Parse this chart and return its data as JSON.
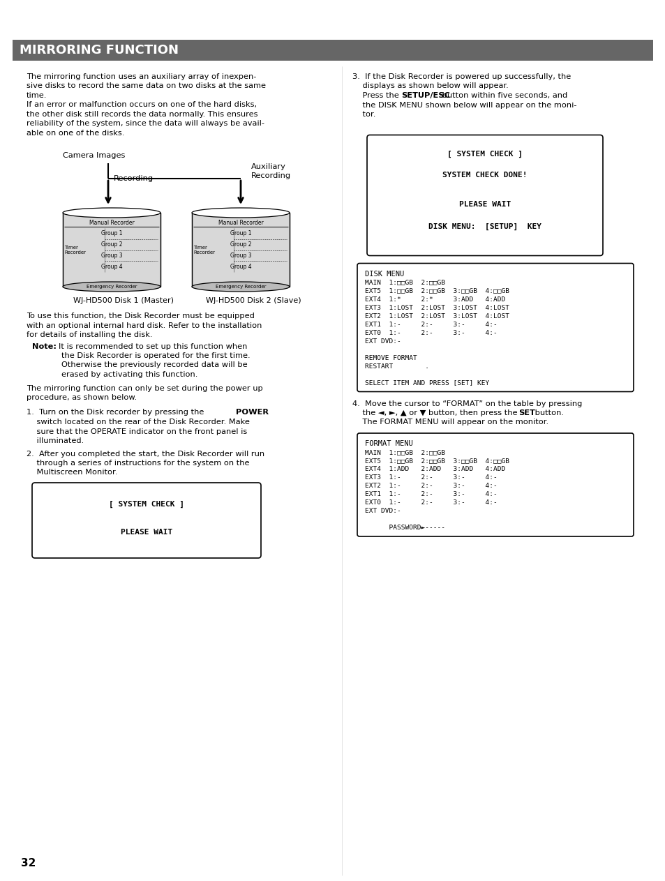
{
  "title": "MIRRORING FUNCTION",
  "title_bg": "#666666",
  "title_color": "#ffffff",
  "page_bg": "#ffffff",
  "page_number": "32",
  "box3_lines": [
    "MAIN  1:□□GB  2:□□GB",
    "EXT5  1:□□GB  2:□□GB  3:□□GB  4:□□GB",
    "EXT4  1:*     2:*     3:ADD   4:ADD",
    "EXT3  1:LOST  2:LOST  3:LOST  4:LOST",
    "EXT2  1:LOST  2:LOST  3:LOST  4:LOST",
    "EXT1  1:-     2:-     3:-     4:-",
    "EXT0  1:-     2:-     3:-     4:-",
    "EXT DVD:-",
    "",
    "REMOVE FORMAT",
    "RESTART        .",
    "",
    "SELECT ITEM AND PRESS [SET] KEY"
  ],
  "box4_lines": [
    "MAIN  1:□□GB  2:□□GB",
    "EXT5  1:□□GB  2:□□GB  3:□□GB  4:□□GB",
    "EXT4  1:ADD   2:ADD   3:ADD   4:ADD",
    "EXT3  1:-     2:-     3:-     4:-",
    "EXT2  1:-     2:-     3:-     4:-",
    "EXT1  1:-     2:-     3:-     4:-",
    "EXT0  1:-     2:-     3:-     4:-",
    "EXT DVD:-",
    "",
    "      PASSWORD►-----"
  ]
}
